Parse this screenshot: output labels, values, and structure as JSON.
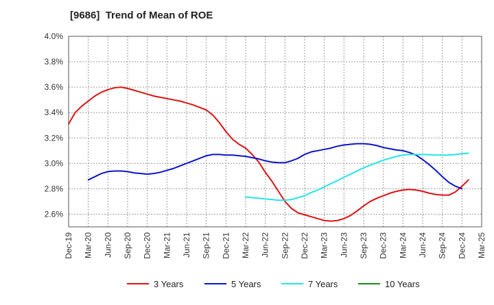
{
  "chart_data": {
    "type": "line",
    "title": "[9686]  Trend of Mean of ROE",
    "xlabel": "",
    "ylabel": "",
    "x_ticks": [
      "Dec-19",
      "Mar-20",
      "Jun-20",
      "Sep-20",
      "Dec-20",
      "Mar-21",
      "Jun-21",
      "Sep-21",
      "Dec-21",
      "Mar-22",
      "Jun-22",
      "Sep-22",
      "Dec-22",
      "Mar-23",
      "Jun-23",
      "Sep-23",
      "Dec-23",
      "Mar-24",
      "Jun-24",
      "Sep-24",
      "Dec-24",
      "Mar-25"
    ],
    "y_ticks": [
      "2.6%",
      "2.8%",
      "3.0%",
      "3.2%",
      "3.4%",
      "3.6%",
      "3.8%",
      "4.0%"
    ],
    "ylim": [
      2.5,
      4.0
    ],
    "grid": true,
    "legend_position": "bottom",
    "series": [
      {
        "name": "3 Years",
        "color": "#dd1111",
        "points": [
          [
            "Dec-19",
            3.31
          ],
          [
            "Jan-20",
            3.4
          ],
          [
            "Feb-20",
            3.45
          ],
          [
            "Mar-20",
            3.49
          ],
          [
            "Apr-20",
            3.53
          ],
          [
            "May-20",
            3.56
          ],
          [
            "Jun-20",
            3.58
          ],
          [
            "Jul-20",
            3.595
          ],
          [
            "Aug-20",
            3.6
          ],
          [
            "Sep-20",
            3.59
          ],
          [
            "Oct-20",
            3.575
          ],
          [
            "Nov-20",
            3.56
          ],
          [
            "Dec-20",
            3.545
          ],
          [
            "Jan-21",
            3.53
          ],
          [
            "Feb-21",
            3.52
          ],
          [
            "Mar-21",
            3.51
          ],
          [
            "Apr-21",
            3.5
          ],
          [
            "May-21",
            3.49
          ],
          [
            "Jun-21",
            3.475
          ],
          [
            "Jul-21",
            3.46
          ],
          [
            "Aug-21",
            3.44
          ],
          [
            "Sep-21",
            3.42
          ],
          [
            "Oct-21",
            3.38
          ],
          [
            "Nov-21",
            3.32
          ],
          [
            "Dec-21",
            3.25
          ],
          [
            "Jan-22",
            3.19
          ],
          [
            "Feb-22",
            3.15
          ],
          [
            "Mar-22",
            3.12
          ],
          [
            "Apr-22",
            3.07
          ],
          [
            "May-22",
            3.01
          ],
          [
            "Jun-22",
            2.93
          ],
          [
            "Jul-22",
            2.86
          ],
          [
            "Aug-22",
            2.78
          ],
          [
            "Sep-22",
            2.7
          ],
          [
            "Oct-22",
            2.645
          ],
          [
            "Nov-22",
            2.61
          ],
          [
            "Dec-22",
            2.595
          ],
          [
            "Jan-23",
            2.58
          ],
          [
            "Feb-23",
            2.565
          ],
          [
            "Mar-23",
            2.55
          ],
          [
            "Apr-23",
            2.545
          ],
          [
            "May-23",
            2.55
          ],
          [
            "Jun-23",
            2.565
          ],
          [
            "Jul-23",
            2.59
          ],
          [
            "Aug-23",
            2.625
          ],
          [
            "Sep-23",
            2.665
          ],
          [
            "Oct-23",
            2.7
          ],
          [
            "Nov-23",
            2.725
          ],
          [
            "Dec-23",
            2.745
          ],
          [
            "Jan-24",
            2.765
          ],
          [
            "Feb-24",
            2.78
          ],
          [
            "Mar-24",
            2.79
          ],
          [
            "Apr-24",
            2.795
          ],
          [
            "May-24",
            2.79
          ],
          [
            "Jun-24",
            2.78
          ],
          [
            "Jul-24",
            2.765
          ],
          [
            "Aug-24",
            2.755
          ],
          [
            "Sep-24",
            2.75
          ],
          [
            "Oct-24",
            2.75
          ],
          [
            "Nov-24",
            2.775
          ],
          [
            "Dec-24",
            2.82
          ],
          [
            "Jan-25",
            2.87
          ]
        ]
      },
      {
        "name": "5 Years",
        "color": "#0a14c8",
        "points": [
          [
            "Mar-20",
            2.87
          ],
          [
            "Apr-20",
            2.895
          ],
          [
            "May-20",
            2.92
          ],
          [
            "Jun-20",
            2.935
          ],
          [
            "Jul-20",
            2.94
          ],
          [
            "Aug-20",
            2.94
          ],
          [
            "Sep-20",
            2.935
          ],
          [
            "Oct-20",
            2.925
          ],
          [
            "Nov-20",
            2.92
          ],
          [
            "Dec-20",
            2.915
          ],
          [
            "Jan-21",
            2.92
          ],
          [
            "Feb-21",
            2.93
          ],
          [
            "Mar-21",
            2.945
          ],
          [
            "Apr-21",
            2.96
          ],
          [
            "May-21",
            2.98
          ],
          [
            "Jun-21",
            3.0
          ],
          [
            "Jul-21",
            3.02
          ],
          [
            "Aug-21",
            3.04
          ],
          [
            "Sep-21",
            3.06
          ],
          [
            "Oct-21",
            3.07
          ],
          [
            "Nov-21",
            3.07
          ],
          [
            "Dec-21",
            3.065
          ],
          [
            "Jan-22",
            3.065
          ],
          [
            "Feb-22",
            3.06
          ],
          [
            "Mar-22",
            3.055
          ],
          [
            "Apr-22",
            3.045
          ],
          [
            "May-22",
            3.035
          ],
          [
            "Jun-22",
            3.02
          ],
          [
            "Jul-22",
            3.01
          ],
          [
            "Aug-22",
            3.005
          ],
          [
            "Sep-22",
            3.005
          ],
          [
            "Oct-22",
            3.02
          ],
          [
            "Nov-22",
            3.04
          ],
          [
            "Dec-22",
            3.07
          ],
          [
            "Jan-23",
            3.09
          ],
          [
            "Feb-23",
            3.1
          ],
          [
            "Mar-23",
            3.11
          ],
          [
            "Apr-23",
            3.12
          ],
          [
            "May-23",
            3.135
          ],
          [
            "Jun-23",
            3.145
          ],
          [
            "Jul-23",
            3.15
          ],
          [
            "Aug-23",
            3.155
          ],
          [
            "Sep-23",
            3.155
          ],
          [
            "Oct-23",
            3.15
          ],
          [
            "Nov-23",
            3.14
          ],
          [
            "Dec-23",
            3.125
          ],
          [
            "Jan-24",
            3.115
          ],
          [
            "Feb-24",
            3.105
          ],
          [
            "Mar-24",
            3.1
          ],
          [
            "Apr-24",
            3.085
          ],
          [
            "May-24",
            3.065
          ],
          [
            "Jun-24",
            3.03
          ],
          [
            "Jul-24",
            2.99
          ],
          [
            "Aug-24",
            2.945
          ],
          [
            "Sep-24",
            2.895
          ],
          [
            "Oct-24",
            2.85
          ],
          [
            "Nov-24",
            2.82
          ],
          [
            "Dec-24",
            2.8
          ]
        ]
      },
      {
        "name": "7 Years",
        "color": "#22e5e5",
        "points": [
          [
            "Mar-22",
            2.735
          ],
          [
            "Apr-22",
            2.73
          ],
          [
            "May-22",
            2.725
          ],
          [
            "Jun-22",
            2.72
          ],
          [
            "Jul-22",
            2.715
          ],
          [
            "Aug-22",
            2.71
          ],
          [
            "Sep-22",
            2.71
          ],
          [
            "Oct-22",
            2.715
          ],
          [
            "Nov-22",
            2.73
          ],
          [
            "Dec-22",
            2.745
          ],
          [
            "Jan-23",
            2.77
          ],
          [
            "Feb-23",
            2.79
          ],
          [
            "Mar-23",
            2.815
          ],
          [
            "Apr-23",
            2.84
          ],
          [
            "May-23",
            2.865
          ],
          [
            "Jun-23",
            2.89
          ],
          [
            "Jul-23",
            2.915
          ],
          [
            "Aug-23",
            2.94
          ],
          [
            "Sep-23",
            2.965
          ],
          [
            "Oct-23",
            2.985
          ],
          [
            "Nov-23",
            3.005
          ],
          [
            "Dec-23",
            3.025
          ],
          [
            "Jan-24",
            3.04
          ],
          [
            "Feb-24",
            3.055
          ],
          [
            "Mar-24",
            3.065
          ],
          [
            "Apr-24",
            3.07
          ],
          [
            "May-24",
            3.07
          ],
          [
            "Jun-24",
            3.07
          ],
          [
            "Jul-24",
            3.068
          ],
          [
            "Aug-24",
            3.065
          ],
          [
            "Sep-24",
            3.065
          ],
          [
            "Oct-24",
            3.065
          ],
          [
            "Nov-24",
            3.07
          ],
          [
            "Dec-24",
            3.075
          ],
          [
            "Jan-25",
            3.08
          ]
        ]
      },
      {
        "name": "10 Years",
        "color": "#1a8a1a",
        "points": []
      }
    ]
  }
}
